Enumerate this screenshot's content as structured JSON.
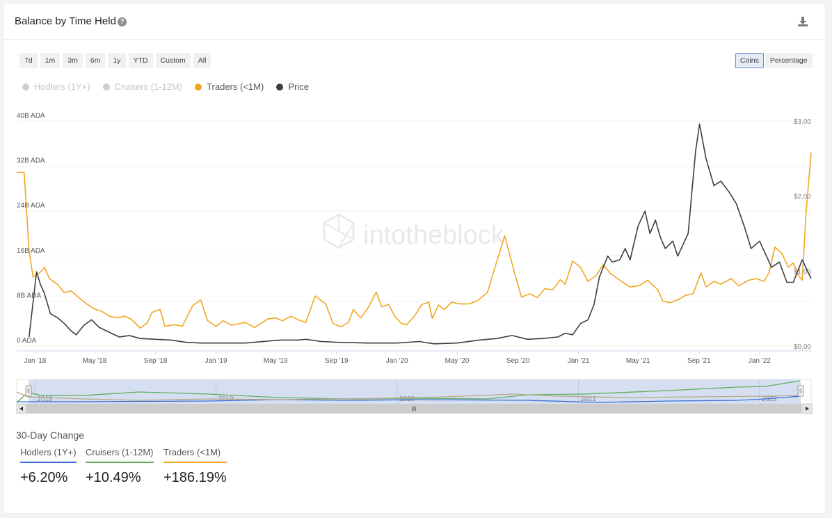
{
  "header": {
    "title": "Balance by Time Held",
    "help_icon": "question-circle-icon",
    "download_icon": "download-icon"
  },
  "range_buttons": [
    "7d",
    "1m",
    "3m",
    "6m",
    "1y",
    "YTD",
    "Custom",
    "All"
  ],
  "unit_buttons": [
    {
      "label": "Coins",
      "active": true
    },
    {
      "label": "Percentage",
      "active": false
    }
  ],
  "legend": [
    {
      "label": "Hodlers (1Y+)",
      "color": "#cfcfcf",
      "visible": false
    },
    {
      "label": "Cruisers (1-12M)",
      "color": "#cfcfcf",
      "visible": false
    },
    {
      "label": "Traders (<1M)",
      "color": "#f0a623",
      "visible": true
    },
    {
      "label": "Price",
      "color": "#3a3d42",
      "visible": true
    }
  ],
  "watermark": "intotheblock",
  "chart_data": {
    "type": "line",
    "x_range": [
      "2017-11-25",
      "2022-04-15"
    ],
    "x_ticks": [
      "Jan '18",
      "May '18",
      "Sep '18",
      "Jan '19",
      "May '19",
      "Sep '19",
      "Jan '20",
      "May '20",
      "Sep '20",
      "Jan '21",
      "May '21",
      "Sep '21",
      "Jan '22"
    ],
    "y_left": {
      "ticks": [
        "0 ADA",
        "8B ADA",
        "16B ADA",
        "24B ADA",
        "32B ADA",
        "40B ADA"
      ],
      "range": [
        0,
        40
      ],
      "unit": "B ADA"
    },
    "y_right": {
      "ticks": [
        "$0.00",
        "$1.00",
        "$2.00",
        "$3.00"
      ],
      "range": [
        0,
        3
      ]
    },
    "grid": true,
    "series": [
      {
        "name": "Traders (<1M)",
        "axis": "left",
        "color": "#f0a623",
        "points": [
          [
            "2017-11-25",
            30.9
          ],
          [
            "2017-12-10",
            30.9
          ],
          [
            "2017-12-20",
            17
          ],
          [
            "2017-12-28",
            12.3
          ],
          [
            "2018-01-10",
            13
          ],
          [
            "2018-01-20",
            14
          ],
          [
            "2018-01-30",
            12
          ],
          [
            "2018-02-15",
            11
          ],
          [
            "2018-03-01",
            9.5
          ],
          [
            "2018-03-15",
            9.8
          ],
          [
            "2018-04-01",
            8.5
          ],
          [
            "2018-04-15",
            7.5
          ],
          [
            "2018-05-01",
            6.6
          ],
          [
            "2018-05-15",
            6.2
          ],
          [
            "2018-06-01",
            5.3
          ],
          [
            "2018-06-15",
            5
          ],
          [
            "2018-07-01",
            5.3
          ],
          [
            "2018-07-15",
            4.7
          ],
          [
            "2018-08-01",
            3.2
          ],
          [
            "2018-08-15",
            4.1
          ],
          [
            "2018-08-25",
            6
          ],
          [
            "2018-09-10",
            6.5
          ],
          [
            "2018-09-20",
            3.5
          ],
          [
            "2018-10-10",
            3.8
          ],
          [
            "2018-10-25",
            3.5
          ],
          [
            "2018-11-15",
            7.2
          ],
          [
            "2018-12-01",
            8.2
          ],
          [
            "2018-12-15",
            4.5
          ],
          [
            "2019-01-01",
            3.5
          ],
          [
            "2019-01-15",
            4.5
          ],
          [
            "2019-02-01",
            3.7
          ],
          [
            "2019-03-01",
            4.2
          ],
          [
            "2019-03-20",
            3.3
          ],
          [
            "2019-04-15",
            4.8
          ],
          [
            "2019-05-01",
            5
          ],
          [
            "2019-05-15",
            4.5
          ],
          [
            "2019-06-01",
            5.3
          ],
          [
            "2019-06-15",
            4.7
          ],
          [
            "2019-07-01",
            4.2
          ],
          [
            "2019-07-20",
            8.9
          ],
          [
            "2019-08-10",
            7.5
          ],
          [
            "2019-08-25",
            4
          ],
          [
            "2019-09-10",
            3.4
          ],
          [
            "2019-09-25",
            4.2
          ],
          [
            "2019-10-05",
            6.5
          ],
          [
            "2019-10-20",
            5
          ],
          [
            "2019-11-05",
            7
          ],
          [
            "2019-11-20",
            9.6
          ],
          [
            "2019-12-01",
            7
          ],
          [
            "2019-12-15",
            7.4
          ],
          [
            "2019-12-28",
            5.2
          ],
          [
            "2020-01-10",
            4
          ],
          [
            "2020-01-20",
            3.8
          ],
          [
            "2020-02-05",
            5.3
          ],
          [
            "2020-02-20",
            7.4
          ],
          [
            "2020-03-05",
            7.8
          ],
          [
            "2020-03-12",
            4.9
          ],
          [
            "2020-03-25",
            7.3
          ],
          [
            "2020-04-05",
            6.5
          ],
          [
            "2020-04-20",
            7.8
          ],
          [
            "2020-05-05",
            7.5
          ],
          [
            "2020-05-25",
            7.5
          ],
          [
            "2020-06-10",
            8
          ],
          [
            "2020-07-01",
            9.5
          ],
          [
            "2020-07-20",
            15
          ],
          [
            "2020-08-05",
            19.6
          ],
          [
            "2020-08-25",
            13
          ],
          [
            "2020-09-08",
            8.7
          ],
          [
            "2020-09-25",
            9.3
          ],
          [
            "2020-10-10",
            8.6
          ],
          [
            "2020-10-25",
            10.2
          ],
          [
            "2020-11-10",
            10
          ],
          [
            "2020-11-25",
            11.8
          ],
          [
            "2020-12-05",
            11
          ],
          [
            "2020-12-20",
            15.1
          ],
          [
            "2021-01-05",
            14
          ],
          [
            "2021-01-20",
            11.5
          ],
          [
            "2021-02-05",
            12.5
          ],
          [
            "2021-02-20",
            14.5
          ],
          [
            "2021-03-05",
            13
          ],
          [
            "2021-03-25",
            11.7
          ],
          [
            "2021-04-15",
            10.5
          ],
          [
            "2021-05-05",
            10.8
          ],
          [
            "2021-05-20",
            11.7
          ],
          [
            "2021-06-10",
            10
          ],
          [
            "2021-06-20",
            8
          ],
          [
            "2021-07-05",
            7.7
          ],
          [
            "2021-07-20",
            8.2
          ],
          [
            "2021-08-05",
            9
          ],
          [
            "2021-08-20",
            9.3
          ],
          [
            "2021-09-05",
            13
          ],
          [
            "2021-09-15",
            10.5
          ],
          [
            "2021-10-01",
            11.5
          ],
          [
            "2021-10-15",
            11
          ],
          [
            "2021-11-05",
            12
          ],
          [
            "2021-11-20",
            10.7
          ],
          [
            "2021-12-10",
            11.7
          ],
          [
            "2021-12-25",
            12
          ],
          [
            "2022-01-10",
            11.5
          ],
          [
            "2022-01-20",
            13
          ],
          [
            "2022-02-01",
            17.6
          ],
          [
            "2022-02-15",
            16.5
          ],
          [
            "2022-02-28",
            14
          ],
          [
            "2022-03-10",
            14.8
          ],
          [
            "2022-03-20",
            12.6
          ],
          [
            "2022-03-28",
            11.7
          ],
          [
            "2022-04-05",
            24
          ],
          [
            "2022-04-15",
            34.4
          ]
        ]
      },
      {
        "name": "Price",
        "axis": "right",
        "color": "#3a3d42",
        "points": [
          [
            "2017-12-20",
            0.12
          ],
          [
            "2018-01-04",
            0.99
          ],
          [
            "2018-01-12",
            0.82
          ],
          [
            "2018-01-20",
            0.7
          ],
          [
            "2018-02-01",
            0.43
          ],
          [
            "2018-02-15",
            0.38
          ],
          [
            "2018-03-01",
            0.3
          ],
          [
            "2018-03-15",
            0.2
          ],
          [
            "2018-03-25",
            0.15
          ],
          [
            "2018-04-10",
            0.28
          ],
          [
            "2018-04-25",
            0.35
          ],
          [
            "2018-05-10",
            0.25
          ],
          [
            "2018-06-01",
            0.18
          ],
          [
            "2018-06-20",
            0.12
          ],
          [
            "2018-07-10",
            0.14
          ],
          [
            "2018-08-01",
            0.1
          ],
          [
            "2018-09-01",
            0.09
          ],
          [
            "2018-10-01",
            0.08
          ],
          [
            "2018-11-01",
            0.05
          ],
          [
            "2018-12-01",
            0.04
          ],
          [
            "2019-01-01",
            0.04
          ],
          [
            "2019-03-01",
            0.04
          ],
          [
            "2019-05-10",
            0.08
          ],
          [
            "2019-06-15",
            0.08
          ],
          [
            "2019-07-01",
            0.09
          ],
          [
            "2019-08-01",
            0.06
          ],
          [
            "2019-09-01",
            0.05
          ],
          [
            "2019-11-01",
            0.04
          ],
          [
            "2020-01-01",
            0.04
          ],
          [
            "2020-02-15",
            0.06
          ],
          [
            "2020-03-15",
            0.03
          ],
          [
            "2020-05-01",
            0.04
          ],
          [
            "2020-06-15",
            0.08
          ],
          [
            "2020-07-20",
            0.1
          ],
          [
            "2020-08-20",
            0.14
          ],
          [
            "2020-09-20",
            0.09
          ],
          [
            "2020-10-20",
            0.1
          ],
          [
            "2020-11-20",
            0.12
          ],
          [
            "2020-12-05",
            0.17
          ],
          [
            "2020-12-20",
            0.15
          ],
          [
            "2021-01-05",
            0.3
          ],
          [
            "2021-01-20",
            0.35
          ],
          [
            "2021-02-01",
            0.55
          ],
          [
            "2021-02-12",
            0.92
          ],
          [
            "2021-03-01",
            1.2
          ],
          [
            "2021-03-10",
            1.12
          ],
          [
            "2021-03-25",
            1.15
          ],
          [
            "2021-04-05",
            1.3
          ],
          [
            "2021-04-15",
            1.15
          ],
          [
            "2021-05-01",
            1.6
          ],
          [
            "2021-05-15",
            1.8
          ],
          [
            "2021-05-25",
            1.5
          ],
          [
            "2021-06-05",
            1.68
          ],
          [
            "2021-06-15",
            1.45
          ],
          [
            "2021-06-25",
            1.3
          ],
          [
            "2021-07-10",
            1.4
          ],
          [
            "2021-07-20",
            1.2
          ],
          [
            "2021-08-10",
            1.5
          ],
          [
            "2021-08-25",
            2.6
          ],
          [
            "2021-09-02",
            2.96
          ],
          [
            "2021-09-15",
            2.5
          ],
          [
            "2021-10-01",
            2.14
          ],
          [
            "2021-10-15",
            2.2
          ],
          [
            "2021-11-01",
            2.05
          ],
          [
            "2021-11-15",
            1.9
          ],
          [
            "2021-12-01",
            1.6
          ],
          [
            "2021-12-15",
            1.3
          ],
          [
            "2022-01-01",
            1.4
          ],
          [
            "2022-01-15",
            1.2
          ],
          [
            "2022-01-25",
            1.05
          ],
          [
            "2022-02-10",
            1.12
          ],
          [
            "2022-02-25",
            0.85
          ],
          [
            "2022-03-10",
            0.85
          ],
          [
            "2022-03-28",
            1.15
          ],
          [
            "2022-04-15",
            0.9
          ]
        ]
      }
    ]
  },
  "navigator": {
    "year_labels": [
      "2018",
      "2019",
      "2020",
      "2021",
      "2022"
    ],
    "scroll_grip": "III"
  },
  "summary": {
    "title": "30-Day Change",
    "stats": [
      {
        "label": "Hodlers (1Y+)",
        "value": "+6.20%",
        "color": "#3b6fd6"
      },
      {
        "label": "Cruisers (1-12M)",
        "value": "+10.49%",
        "color": "#5fae5a"
      },
      {
        "label": "Traders (<1M)",
        "value": "+186.19%",
        "color": "#f0a623"
      }
    ]
  }
}
